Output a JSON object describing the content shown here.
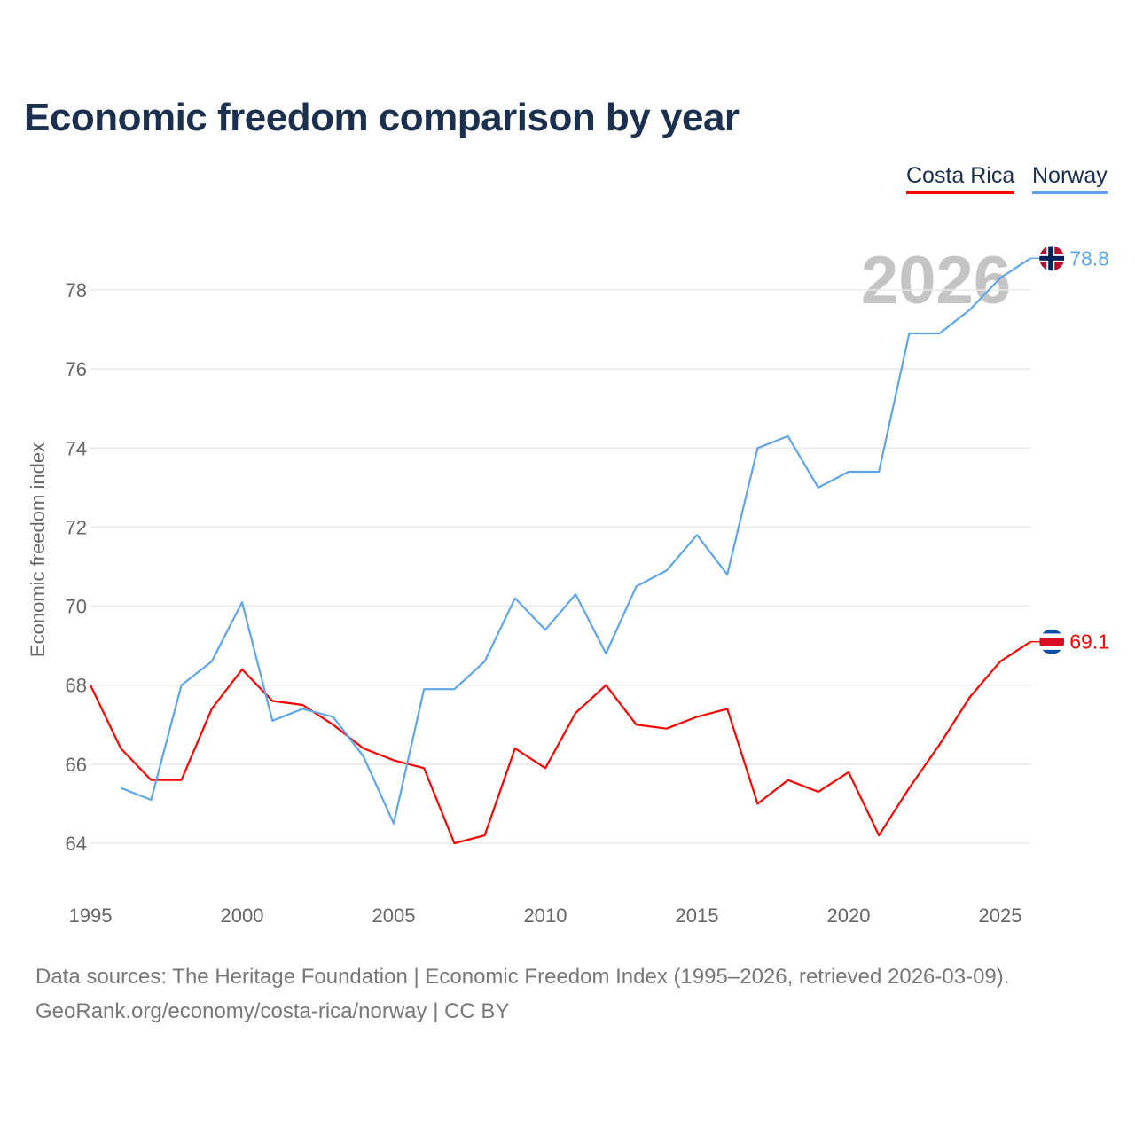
{
  "chart_data": {
    "type": "line",
    "title": "Economic freedom comparison by year",
    "xlabel": "",
    "ylabel": "Economic freedom index",
    "xlim": [
      1995,
      2026
    ],
    "ylim": [
      62.9,
      79.6
    ],
    "x_ticks": [
      1995,
      2000,
      2005,
      2010,
      2015,
      2020,
      2025
    ],
    "y_ticks": [
      64,
      66,
      68,
      70,
      72,
      74,
      76,
      78
    ],
    "grid": true,
    "legend_position": "top-right",
    "year_watermark": "2026",
    "series": [
      {
        "name": "Costa Rica",
        "color": "#ff0000",
        "end_label": "69.1",
        "x": [
          1995,
          1996,
          1997,
          1998,
          1999,
          2000,
          2001,
          2002,
          2003,
          2004,
          2005,
          2006,
          2007,
          2008,
          2009,
          2010,
          2011,
          2012,
          2013,
          2014,
          2015,
          2016,
          2017,
          2018,
          2019,
          2020,
          2021,
          2022,
          2023,
          2024,
          2025,
          2026
        ],
        "values": [
          68.0,
          66.4,
          65.6,
          65.6,
          67.4,
          68.4,
          67.6,
          67.5,
          67.0,
          66.4,
          66.1,
          65.9,
          64.0,
          64.2,
          66.4,
          65.9,
          67.3,
          68.0,
          67.0,
          66.9,
          67.2,
          67.4,
          65.0,
          65.6,
          65.3,
          65.8,
          64.2,
          65.4,
          66.5,
          67.7,
          68.6,
          69.1
        ]
      },
      {
        "name": "Norway",
        "color": "#5fa5e8",
        "end_label": "78.8",
        "x": [
          1996,
          1997,
          1998,
          1999,
          2000,
          2001,
          2002,
          2003,
          2004,
          2005,
          2006,
          2007,
          2008,
          2009,
          2010,
          2011,
          2012,
          2013,
          2014,
          2015,
          2016,
          2017,
          2018,
          2019,
          2020,
          2021,
          2022,
          2023,
          2024,
          2025,
          2026
        ],
        "values": [
          65.4,
          65.1,
          68.0,
          68.6,
          70.1,
          67.1,
          67.4,
          67.2,
          66.2,
          64.5,
          67.9,
          67.9,
          68.6,
          70.2,
          69.4,
          70.3,
          68.8,
          70.5,
          70.9,
          71.8,
          70.8,
          74.0,
          74.3,
          73.0,
          73.4,
          73.4,
          76.9,
          76.9,
          77.5,
          78.3,
          78.8
        ]
      }
    ]
  },
  "footer": {
    "line1": "Data sources: The Heritage Foundation | Economic Freedom Index (1995–2026, retrieved 2026-03-09).",
    "line2": "GeoRank.org/economy/costa-rica/norway | CC BY"
  }
}
